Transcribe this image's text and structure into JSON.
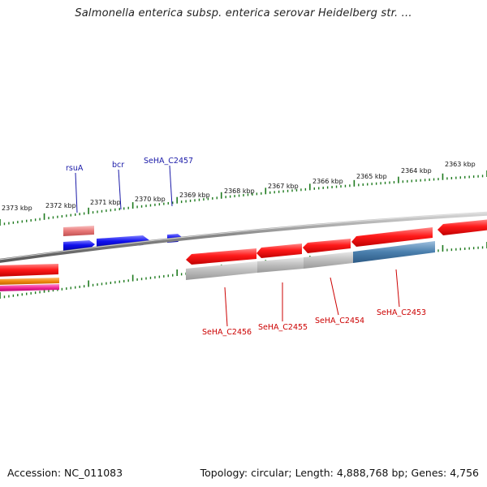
{
  "title": "Salmonella enterica subsp. enterica serovar Heidelberg str. ...",
  "footer": {
    "accession": "Accession: NC_011083",
    "stats": "Topology: circular; Length: 4,888,768 bp; Genes: 4,756"
  },
  "scale_labels": [
    "2373 kbp",
    "2372 kbp",
    "2371 kbp",
    "2370 kbp",
    "2369 kbp",
    "2368 kbp",
    "2367 kbp",
    "2366 kbp",
    "2365 kbp",
    "2364 kbp",
    "2363 kbp"
  ],
  "genes_top": [
    "rsuA",
    "bcr",
    "SeHA_C2457"
  ],
  "genes_bottom": [
    "SeHA_C2456",
    "SeHA_C2455",
    "SeHA_C2454",
    "SeHA_C2453"
  ],
  "colors": {
    "forward_gene": "#1010ee",
    "forward_label": "#1a1aa8",
    "reverse_gene": "#ee1111",
    "reverse_label": "#cc0000",
    "tick": "#1e7a1e",
    "backbone": "#777777",
    "pseudo_gene": "#e88080",
    "grey_gene": "#b8b8b8",
    "steel_gene": "#4a7fad",
    "orange_gene": "#f08a10",
    "pink_gene": "#f02a9a"
  }
}
